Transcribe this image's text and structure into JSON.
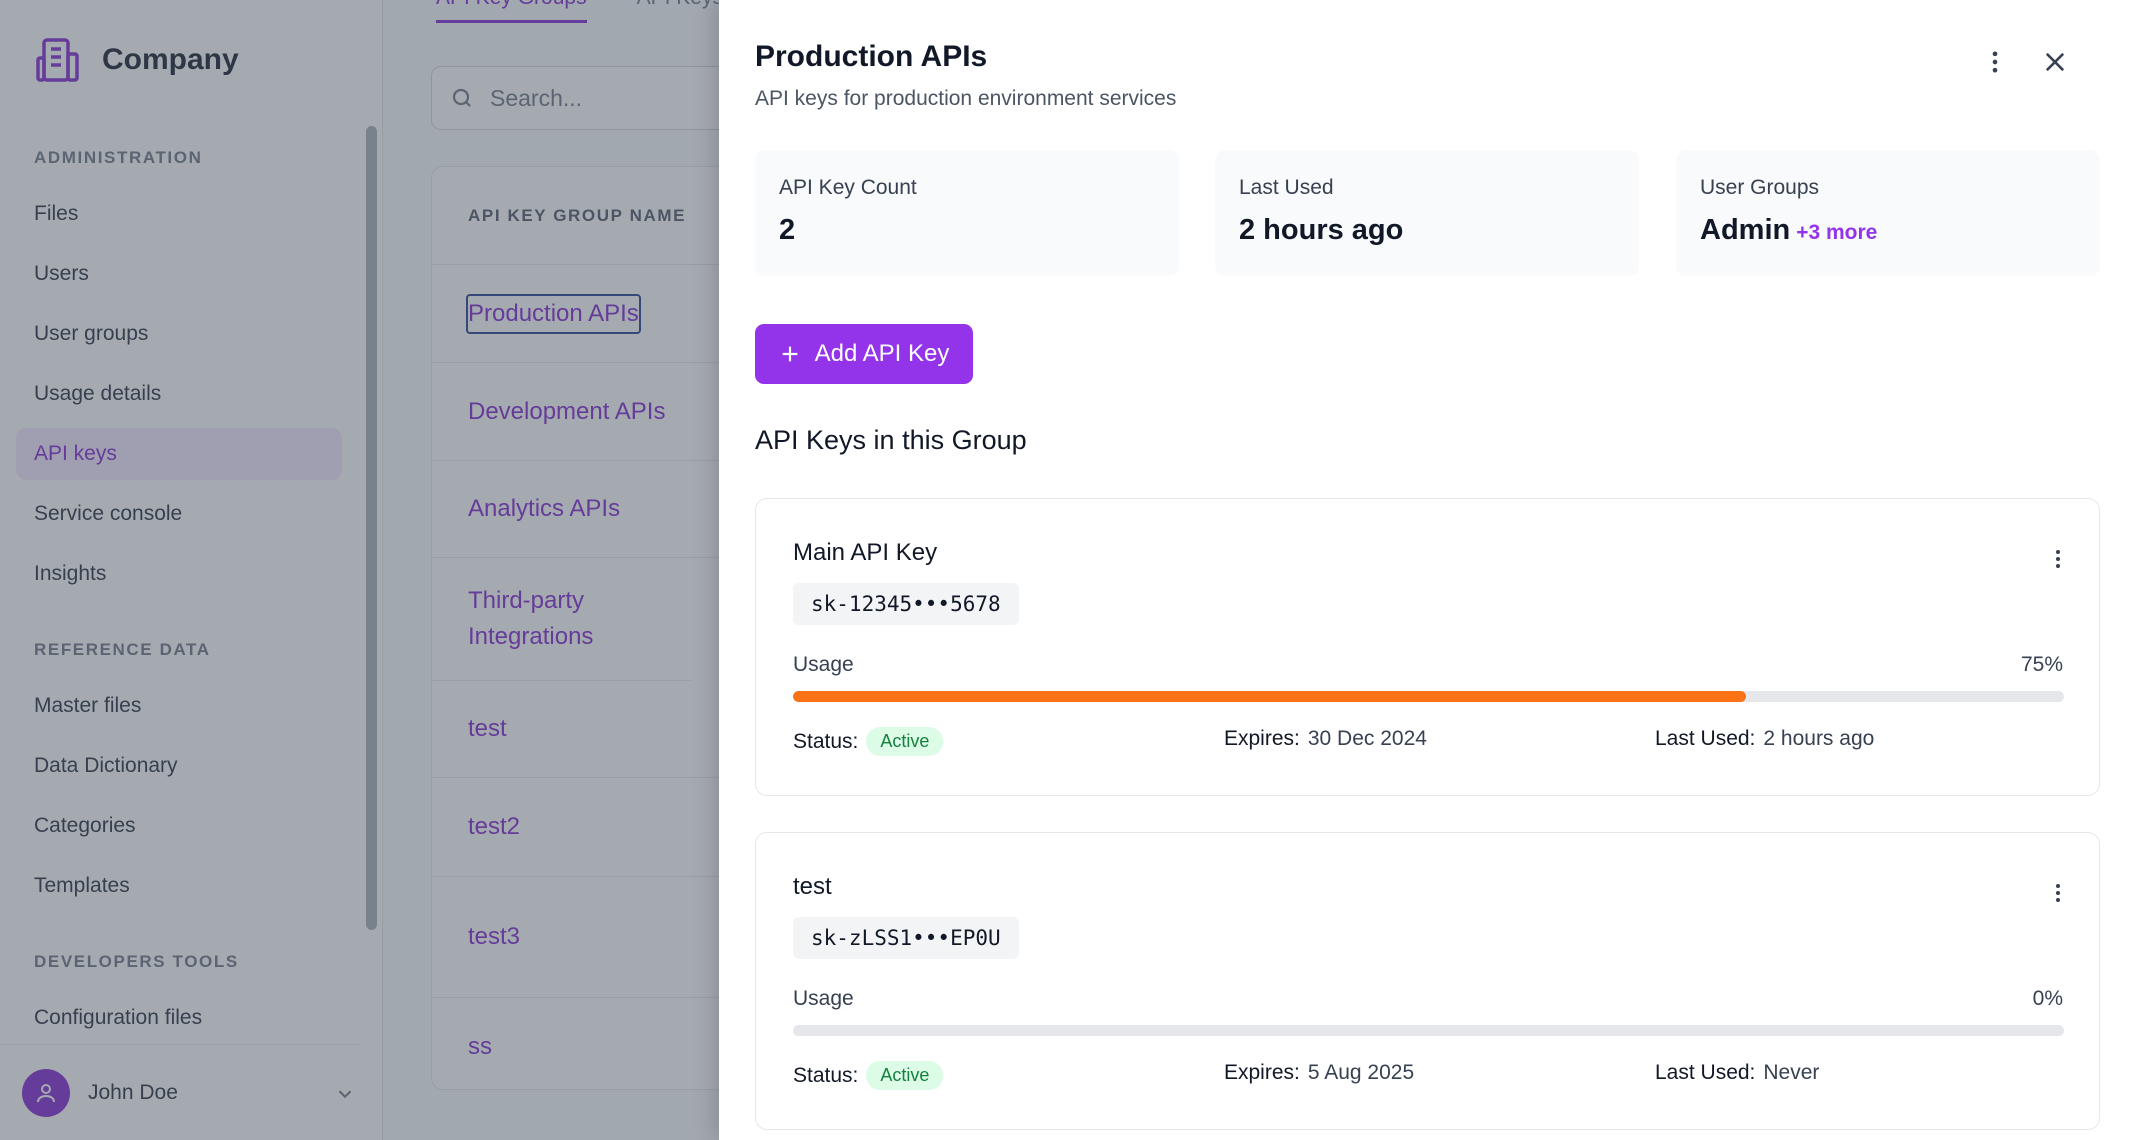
{
  "brand": {
    "name": "Company",
    "icon": "building-icon"
  },
  "sidebar": {
    "sections": [
      {
        "title": "ADMINISTRATION",
        "items": [
          "Files",
          "Users",
          "User groups",
          "Usage details",
          "API keys",
          "Service console",
          "Insights"
        ]
      },
      {
        "title": "REFERENCE DATA",
        "items": [
          "Master files",
          "Data Dictionary",
          "Categories",
          "Templates"
        ]
      },
      {
        "title": "DEVELOPERS TOOLS",
        "items": [
          "Configuration files"
        ]
      }
    ],
    "active_item": "API keys",
    "user": {
      "name": "John Doe"
    }
  },
  "main": {
    "tabs": [
      "API Key Groups",
      "API Keys"
    ],
    "search_placeholder": "Search...",
    "table_header": "API KEY GROUP NAME",
    "rows": [
      "Production APIs",
      "Development APIs",
      "Analytics APIs",
      "Third-party Integrations",
      "test",
      "test2",
      "test3",
      "ss"
    ]
  },
  "panel": {
    "title": "Production APIs",
    "subtitle": "API keys for production environment services",
    "stats": [
      {
        "label": "API Key Count",
        "value": "2"
      },
      {
        "label": "Last Used",
        "value": "2 hours ago"
      },
      {
        "label": "User Groups",
        "value": "Admin",
        "extra": "+3 more"
      }
    ],
    "add_button": "Add API Key",
    "section_title": "API Keys in this Group",
    "keys": [
      {
        "name": "Main API Key",
        "secret": "sk-12345•••5678",
        "usage_label": "Usage",
        "usage_text": "75%",
        "usage_percent": 75,
        "status_label": "Status:",
        "status": "Active",
        "expires_label": "Expires:",
        "expires": "30 Dec 2024",
        "last_used_label": "Last Used:",
        "last_used": "2 hours ago"
      },
      {
        "name": "test",
        "secret": "sk-zLSS1•••EP0U",
        "usage_label": "Usage",
        "usage_text": "0%",
        "usage_percent": 0,
        "status_label": "Status:",
        "status": "Active",
        "expires_label": "Expires:",
        "expires": "5 Aug 2025",
        "last_used_label": "Last Used:",
        "last_used": "Never"
      }
    ]
  },
  "colors": {
    "accent": "#9333ea",
    "usage_bar": "#f97316",
    "badge_bg": "#dcfce7",
    "badge_text": "#15803d"
  }
}
